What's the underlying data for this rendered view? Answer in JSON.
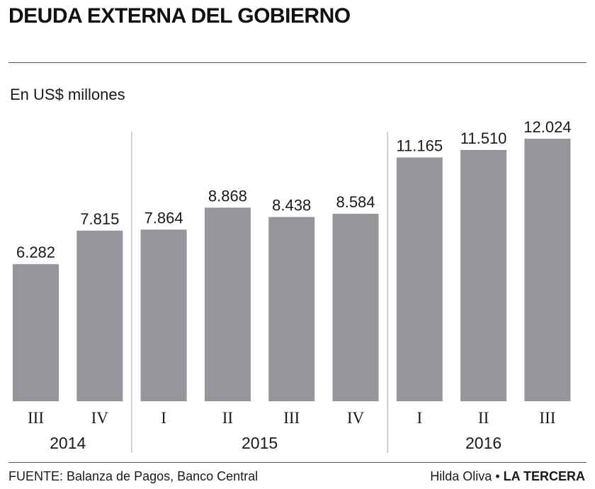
{
  "title": "DEUDA EXTERNA DEL GOBIERNO",
  "footer": {
    "source": "FUENTE: Balanza de Pagos, Banco Central",
    "author": "Hilda Oliva",
    "separator": "•",
    "brand": "LA TERCERA"
  },
  "colors": {
    "bar": "#97959b",
    "divider": "#b5b5b5",
    "text": "#1a1a1a"
  },
  "chart_data": {
    "type": "bar",
    "title": "DEUDA EXTERNA DEL GOBIERNO",
    "ylabel": "En US$ millones",
    "xlabel": "",
    "ylim": [
      0,
      12024
    ],
    "grid": false,
    "categories": [
      "III",
      "IV",
      "I",
      "II",
      "III",
      "IV",
      "I",
      "II",
      "III"
    ],
    "values": [
      6282,
      7815,
      7864,
      8868,
      8438,
      8584,
      11165,
      11510,
      12024
    ],
    "value_labels": [
      "6.282",
      "7.815",
      "7.864",
      "8.868",
      "8.438",
      "8.584",
      "11.165",
      "11.510",
      "12.024"
    ],
    "groups": [
      {
        "label": "2014",
        "count": 2
      },
      {
        "label": "2015",
        "count": 4
      },
      {
        "label": "2016",
        "count": 3
      }
    ]
  }
}
